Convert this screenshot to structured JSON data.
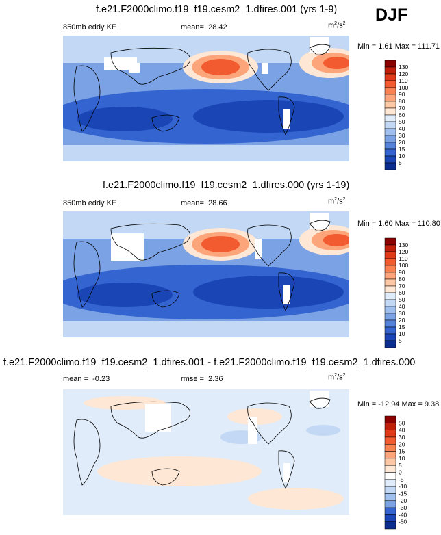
{
  "season": "DJF",
  "units": "m2/s2",
  "panels": [
    {
      "title": "f.e21.F2000climo.f19_f19.cesm2_1.dfires.001 (yrs 1-9)",
      "left_label": "850mb eddy KE",
      "mean_label": "mean=",
      "mean": "28.42",
      "rmse_label": "",
      "rmse": "",
      "unit_base": "m",
      "unit_exp": "2",
      "unit_mid": "/s",
      "unit_exp2": "2",
      "minmax": "Min =  1.61 Max = 111.71",
      "colorbar": {
        "levels": [
          "130",
          "120",
          "110",
          "100",
          "90",
          "80",
          "70",
          "60",
          "50",
          "40",
          "30",
          "20",
          "15",
          "10",
          "5"
        ],
        "colors": [
          "#8b0000",
          "#c0200a",
          "#e03a18",
          "#f25a30",
          "#f98152",
          "#fca57a",
          "#fcc8a6",
          "#fee7d5",
          "#e0ecfa",
          "#c2d8f4",
          "#9fc0ee",
          "#7aa2e4",
          "#5583da",
          "#3464cf",
          "#1a45b5",
          "#0a2d8f"
        ]
      }
    },
    {
      "title": "f.e21.F2000climo.f19_f19.cesm2_1.dfires.000 (yrs 1-19)",
      "left_label": "850mb eddy KE",
      "mean_label": "mean=",
      "mean": "28.66",
      "rmse_label": "",
      "rmse": "",
      "unit_base": "m",
      "unit_exp": "2",
      "unit_mid": "/s",
      "unit_exp2": "2",
      "minmax": "Min =  1.60 Max = 110.80",
      "colorbar": {
        "levels": [
          "130",
          "120",
          "110",
          "100",
          "90",
          "80",
          "70",
          "60",
          "50",
          "40",
          "30",
          "20",
          "15",
          "10",
          "5"
        ],
        "colors": [
          "#8b0000",
          "#c0200a",
          "#e03a18",
          "#f25a30",
          "#f98152",
          "#fca57a",
          "#fcc8a6",
          "#fee7d5",
          "#e0ecfa",
          "#c2d8f4",
          "#9fc0ee",
          "#7aa2e4",
          "#5583da",
          "#3464cf",
          "#1a45b5",
          "#0a2d8f"
        ]
      }
    },
    {
      "title": "f.e21.F2000climo.f19_f19.cesm2_1.dfires.001 - f.e21.F2000climo.f19_f19.cesm2_1.dfires.000",
      "left_label": "",
      "mean_label": "mean =",
      "mean": "-0.23",
      "rmse_label": "rmse =",
      "rmse": "2.36",
      "unit_base": "m",
      "unit_exp": "2",
      "unit_mid": "/s",
      "unit_exp2": "2",
      "minmax": "Min = -12.94 Max =  9.38",
      "colorbar": {
        "levels": [
          "50",
          "40",
          "30",
          "20",
          "15",
          "10",
          "5",
          "0",
          "-5",
          "-10",
          "-15",
          "-20",
          "-30",
          "-40",
          "-50"
        ],
        "colors": [
          "#8b0000",
          "#c0200a",
          "#e03a18",
          "#f25a30",
          "#f98152",
          "#fca57a",
          "#fcc8a6",
          "#fee7d5",
          "#ffffff",
          "#e0ecfa",
          "#c2d8f4",
          "#9fc0ee",
          "#7aa2e4",
          "#3464cf",
          "#1a45b5",
          "#0a2d8f"
        ]
      }
    }
  ]
}
